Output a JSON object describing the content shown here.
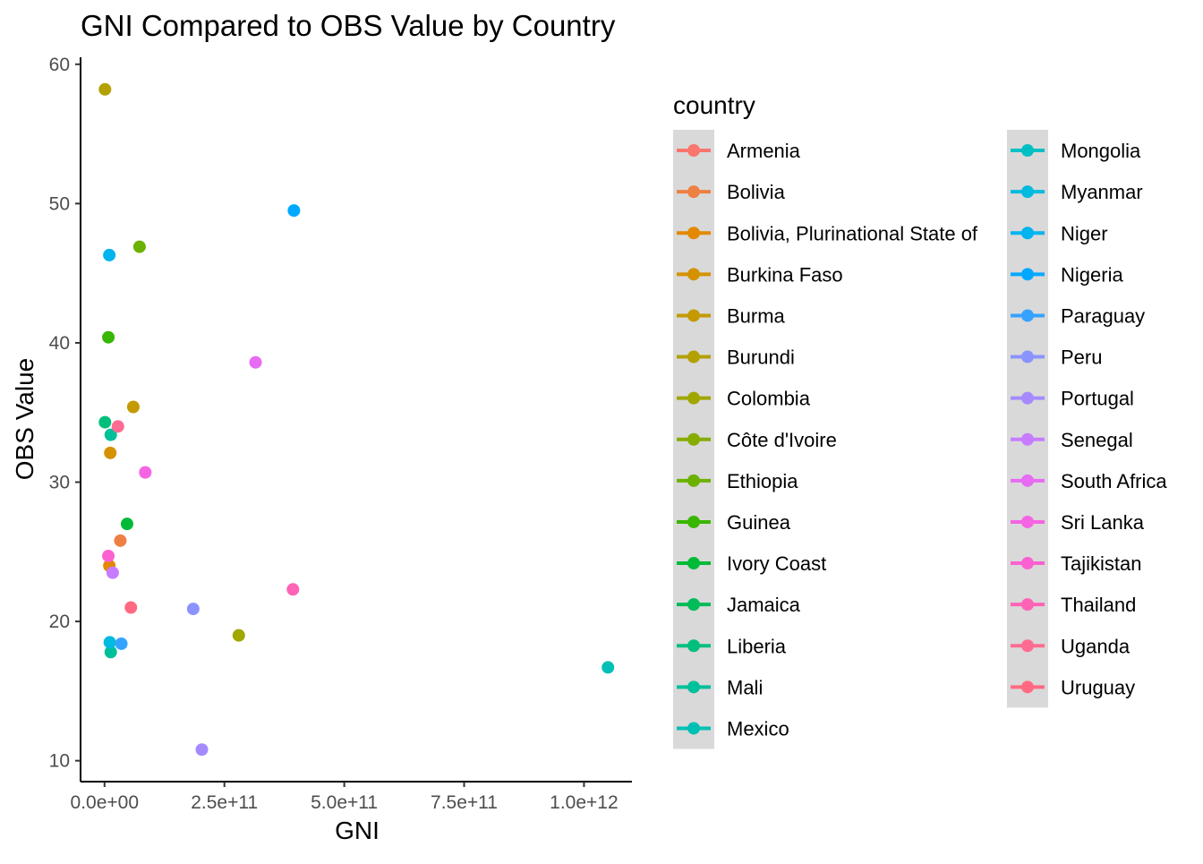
{
  "chart_data": {
    "type": "scatter",
    "title": "GNI Compared to OBS Value by Country",
    "xlabel": "GNI",
    "ylabel": "OBS Value",
    "xlim": [
      -50000000000,
      1100000000000
    ],
    "ylim": [
      8.5,
      60.5
    ],
    "x_ticks": [
      0,
      250000000000,
      500000000000,
      750000000000,
      1000000000000
    ],
    "x_tick_labels": [
      "0.0e+00",
      "2.5e+11",
      "5.0e+11",
      "7.5e+11",
      "1.0e+12"
    ],
    "y_ticks": [
      10,
      20,
      30,
      40,
      50,
      60
    ],
    "y_tick_labels": [
      "10",
      "20",
      "30",
      "40",
      "50",
      "60"
    ],
    "grid": false,
    "legend_title": "country",
    "legend_position": "right",
    "series": [
      {
        "name": "Armenia",
        "color": "#F8766D",
        "points": []
      },
      {
        "name": "Bolivia",
        "color": "#EE8044",
        "points": [
          {
            "x": 33000000000,
            "y": 25.8
          }
        ]
      },
      {
        "name": "Bolivia, Plurinational State of",
        "color": "#E38900",
        "points": [
          {
            "x": 10000000000,
            "y": 24.0
          }
        ]
      },
      {
        "name": "Burkina Faso",
        "color": "#D49200",
        "points": [
          {
            "x": 12000000000,
            "y": 32.1
          }
        ]
      },
      {
        "name": "Burma",
        "color": "#C49A00",
        "points": [
          {
            "x": 60000000000,
            "y": 35.4
          }
        ]
      },
      {
        "name": "Burundi",
        "color": "#B2A100",
        "points": [
          {
            "x": 1000000000,
            "y": 58.2
          }
        ]
      },
      {
        "name": "Colombia",
        "color": "#9FA700",
        "points": [
          {
            "x": 280000000000,
            "y": 19.0
          }
        ]
      },
      {
        "name": "Côte d'Ivoire",
        "color": "#86AC00",
        "points": []
      },
      {
        "name": "Ethiopia",
        "color": "#6BB100",
        "points": [
          {
            "x": 73000000000,
            "y": 46.9
          }
        ]
      },
      {
        "name": "Guinea",
        "color": "#39B600",
        "points": [
          {
            "x": 8000000000,
            "y": 40.4
          }
        ]
      },
      {
        "name": "Ivory Coast",
        "color": "#00BA38",
        "points": [
          {
            "x": 47000000000,
            "y": 27.0
          }
        ]
      },
      {
        "name": "Jamaica",
        "color": "#00BC59",
        "points": []
      },
      {
        "name": "Liberia",
        "color": "#00BF7D",
        "points": [
          {
            "x": 1000000000,
            "y": 34.3
          }
        ]
      },
      {
        "name": "Mali",
        "color": "#00C09B",
        "points": [
          {
            "x": 13000000000,
            "y": 33.4
          },
          {
            "x": 13000000000,
            "y": 17.8
          }
        ]
      },
      {
        "name": "Mexico",
        "color": "#00C0B5",
        "points": [
          {
            "x": 1050000000000,
            "y": 16.7
          }
        ]
      },
      {
        "name": "Mongolia",
        "color": "#00BFC4",
        "points": []
      },
      {
        "name": "Myanmar",
        "color": "#00BAE0",
        "points": [
          {
            "x": 11000000000,
            "y": 18.5
          }
        ]
      },
      {
        "name": "Niger",
        "color": "#00B4EF",
        "points": [
          {
            "x": 10000000000,
            "y": 46.3
          }
        ]
      },
      {
        "name": "Nigeria",
        "color": "#00A9FF",
        "points": [
          {
            "x": 395000000000,
            "y": 49.5
          }
        ]
      },
      {
        "name": "Paraguay",
        "color": "#35A2FF",
        "points": [
          {
            "x": 35000000000,
            "y": 18.4
          }
        ]
      },
      {
        "name": "Peru",
        "color": "#8B93FF",
        "points": [
          {
            "x": 185000000000,
            "y": 20.9
          }
        ]
      },
      {
        "name": "Portugal",
        "color": "#A58AFF",
        "points": [
          {
            "x": 203000000000,
            "y": 10.8
          }
        ]
      },
      {
        "name": "Senegal",
        "color": "#C77CFF",
        "points": [
          {
            "x": 17000000000,
            "y": 23.5
          }
        ]
      },
      {
        "name": "South Africa",
        "color": "#E76BF3",
        "points": [
          {
            "x": 315000000000,
            "y": 38.6
          }
        ]
      },
      {
        "name": "Sri Lanka",
        "color": "#F564E3",
        "points": [
          {
            "x": 85000000000,
            "y": 30.7
          }
        ]
      },
      {
        "name": "Tajikistan",
        "color": "#FD61D1",
        "points": [
          {
            "x": 8000000000,
            "y": 24.7
          }
        ]
      },
      {
        "name": "Thailand",
        "color": "#FF63B6",
        "points": [
          {
            "x": 393000000000,
            "y": 22.3
          }
        ]
      },
      {
        "name": "Uganda",
        "color": "#FF6C91",
        "points": [
          {
            "x": 28000000000,
            "y": 34.0
          }
        ]
      },
      {
        "name": "Uruguay",
        "color": "#FF6A82",
        "points": [
          {
            "x": 55000000000,
            "y": 21.0
          }
        ]
      }
    ]
  }
}
